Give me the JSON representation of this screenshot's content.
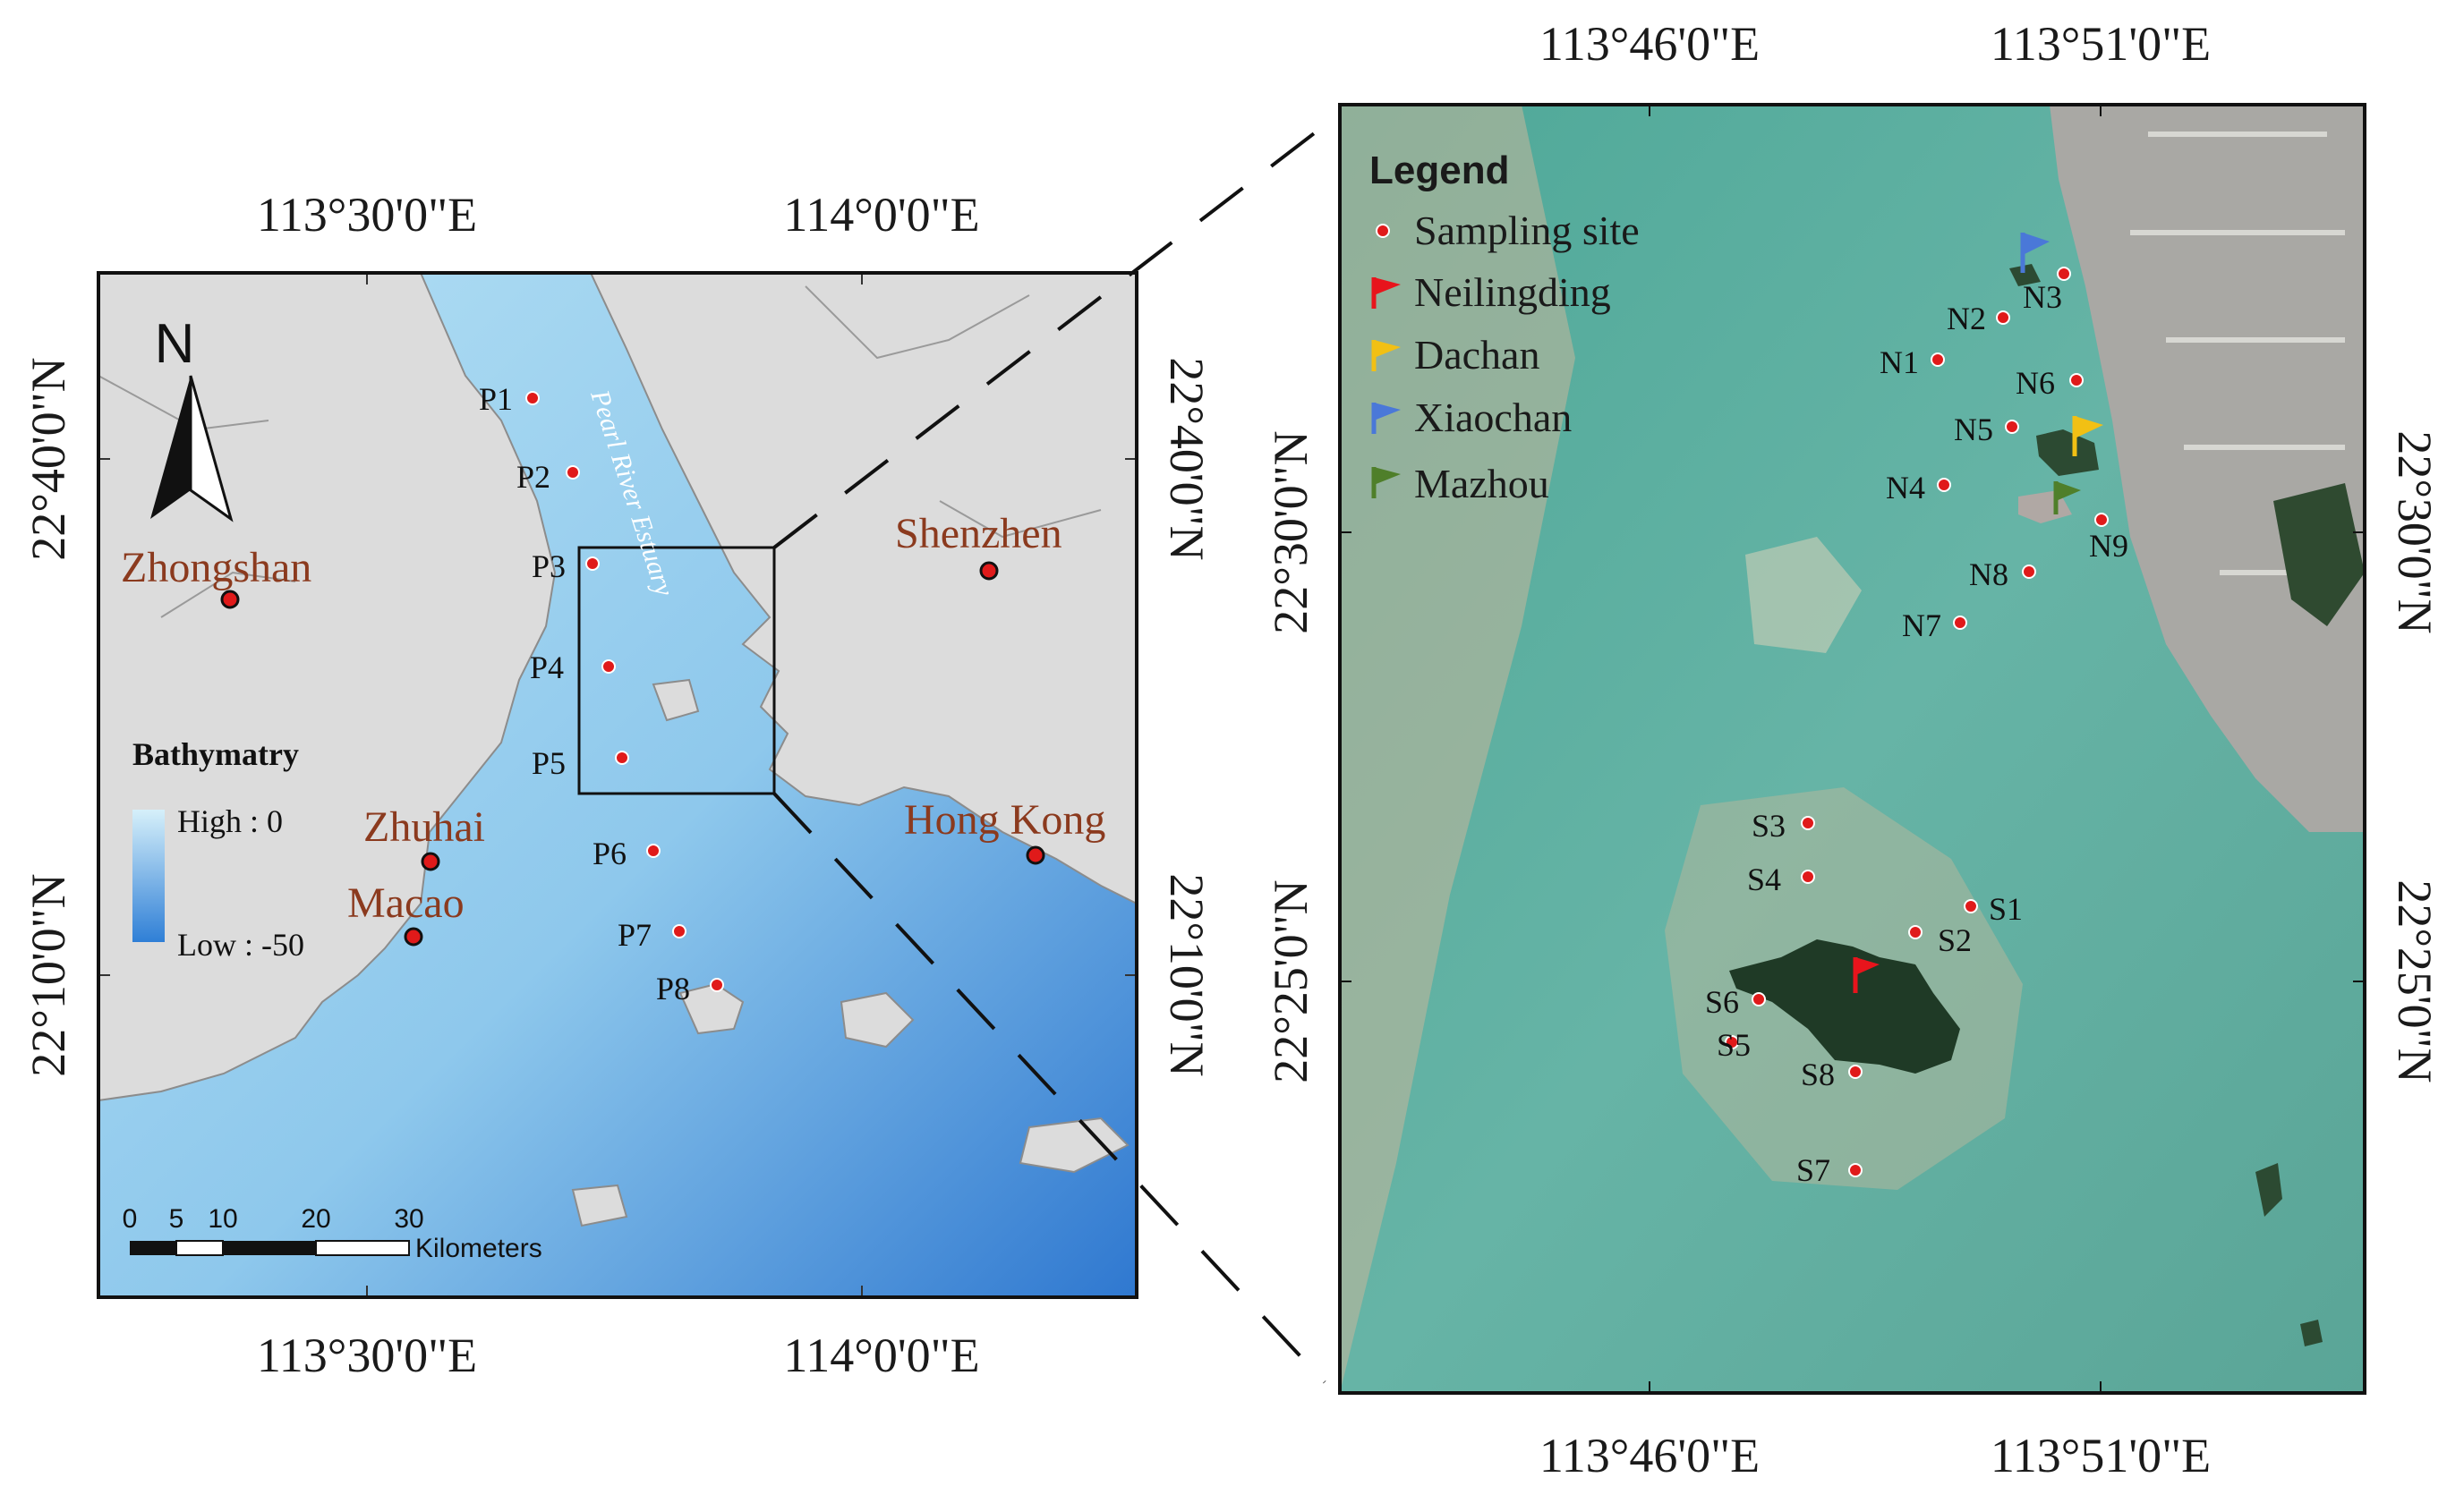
{
  "left_map": {
    "top_ticks": [
      "113°30'0\"E",
      "114°0'0\"E"
    ],
    "bottom_ticks": [
      "113°30'0\"E",
      "114°0'0\"E"
    ],
    "left_ticks": [
      "22°40'0\"N",
      "22°10'0\"N"
    ],
    "right_ticks": [
      "22°40'0\"N",
      "22°10'0\"N"
    ],
    "north_label": "N",
    "cities": [
      "Zhongshan",
      "Shenzhen",
      "Zhuhai",
      "Macao",
      "Hong Kong"
    ],
    "river_label": "Pearl River Estuary",
    "sites": [
      "P1",
      "P2",
      "P3",
      "P4",
      "P5",
      "P6",
      "P7",
      "P8"
    ],
    "bathymetry": {
      "title": "Bathymatry",
      "high": "High : 0",
      "low": "Low : -50",
      "color_high": "#d6f0fa",
      "color_low": "#2f7fd6"
    },
    "scale": {
      "ticks": [
        "0",
        "5",
        "10",
        "20",
        "30"
      ],
      "unit": "Kilometers"
    },
    "colors": {
      "land": "#dcdcdc",
      "water": "#a8d8f0",
      "deep_water": "#3a86d8",
      "site": "#e01a1a"
    }
  },
  "right_map": {
    "top_ticks": [
      "113°46'0\"E",
      "113°51'0\"E"
    ],
    "bottom_ticks": [
      "113°46'0\"E",
      "113°51'0\"E"
    ],
    "left_ticks": [
      "22°30'0\"N",
      "22°25'0\"N"
    ],
    "right_ticks": [
      "22°30'0\"N",
      "22°25'0\"N"
    ],
    "legend": {
      "title": "Legend",
      "items": [
        {
          "label": "Sampling site",
          "kind": "dot",
          "color": "#e01a1a"
        },
        {
          "label": "Neilingding",
          "kind": "flag",
          "color": "#e8141c"
        },
        {
          "label": "Dachan",
          "kind": "flag",
          "color": "#f2c014"
        },
        {
          "label": "Xiaochan",
          "kind": "flag",
          "color": "#4a78d8"
        },
        {
          "label": "Mazhou",
          "kind": "flag",
          "color": "#4f7f2a"
        }
      ]
    },
    "north_sites": [
      "N1",
      "N2",
      "N3",
      "N4",
      "N5",
      "N6",
      "N7",
      "N8",
      "N9"
    ],
    "south_sites": [
      "S1",
      "S2",
      "S3",
      "S4",
      "S5",
      "S6",
      "S7",
      "S8"
    ],
    "colors": {
      "water": "#5fb0a2",
      "sediment": "#c8b69a",
      "island": "#1f3a26"
    }
  }
}
